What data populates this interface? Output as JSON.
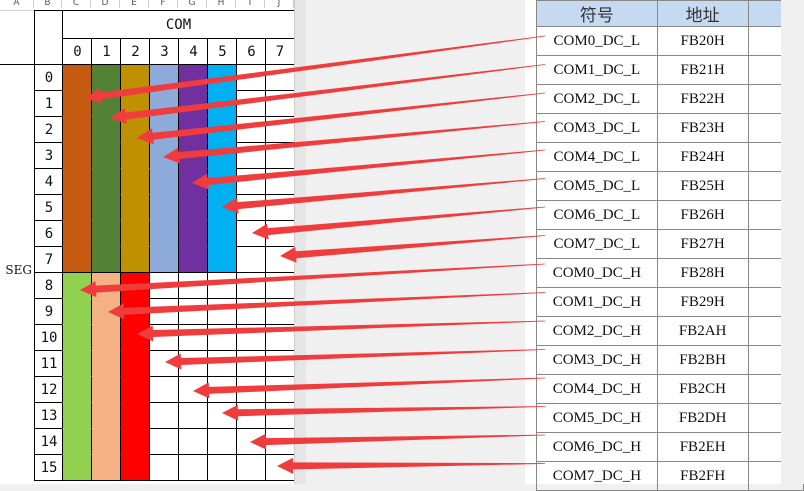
{
  "spreadsheet": {
    "column_letters": [
      "A",
      "B",
      "C",
      "D",
      "E",
      "F",
      "G",
      "H",
      "I",
      "J"
    ],
    "com_label": "COM",
    "seg_label": "SEG",
    "com_numbers": [
      "0",
      "1",
      "2",
      "3",
      "4",
      "5",
      "6",
      "7"
    ],
    "seg_numbers": [
      "0",
      "1",
      "2",
      "3",
      "4",
      "5",
      "6",
      "7",
      "8",
      "9",
      "10",
      "11",
      "12",
      "13",
      "14",
      "15"
    ],
    "colors_seg0_7": [
      "#c55a11",
      "#538135",
      "#bf9000",
      "#8eaadb",
      "#7030a0",
      "#00b0f0"
    ],
    "colors_seg8_15": [
      "#92d050",
      "#f4b183",
      "#ff0000"
    ]
  },
  "table": {
    "headers": [
      "符号",
      "地址",
      ""
    ],
    "rows": [
      [
        "COM0_DC_L",
        "FB20H"
      ],
      [
        "COM1_DC_L",
        "FB21H"
      ],
      [
        "COM2_DC_L",
        "FB22H"
      ],
      [
        "COM3_DC_L",
        "FB23H"
      ],
      [
        "COM4_DC_L",
        "FB24H"
      ],
      [
        "COM5_DC_L",
        "FB25H"
      ],
      [
        "COM6_DC_L",
        "FB26H"
      ],
      [
        "COM7_DC_L",
        "FB27H"
      ],
      [
        "COM0_DC_H",
        "FB28H"
      ],
      [
        "COM1_DC_H",
        "FB29H"
      ],
      [
        "COM2_DC_H",
        "FB2AH"
      ],
      [
        "COM3_DC_H",
        "FB2BH"
      ],
      [
        "COM4_DC_H",
        "FB2CH"
      ],
      [
        "COM5_DC_H",
        "FB2DH"
      ],
      [
        "COM6_DC_H",
        "FB2EH"
      ],
      [
        "COM7_DC_H",
        "FB2FH"
      ]
    ]
  },
  "arrow_color": "#f03c3c"
}
